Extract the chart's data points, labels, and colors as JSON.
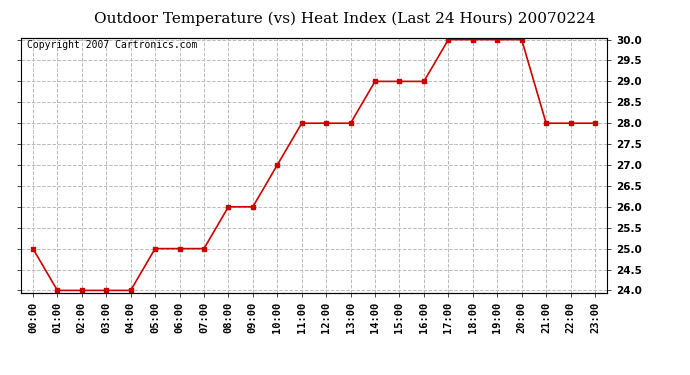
{
  "title": "Outdoor Temperature (vs) Heat Index (Last 24 Hours) 20070224",
  "copyright_text": "Copyright 2007 Cartronics.com",
  "x_labels": [
    "00:00",
    "01:00",
    "02:00",
    "03:00",
    "04:00",
    "05:00",
    "06:00",
    "07:00",
    "08:00",
    "09:00",
    "10:00",
    "11:00",
    "12:00",
    "13:00",
    "14:00",
    "15:00",
    "16:00",
    "17:00",
    "18:00",
    "19:00",
    "20:00",
    "21:00",
    "22:00",
    "23:00"
  ],
  "y_values": [
    25.0,
    24.0,
    24.0,
    24.0,
    24.0,
    25.0,
    25.0,
    25.0,
    26.0,
    26.0,
    27.0,
    28.0,
    28.0,
    28.0,
    29.0,
    29.0,
    29.0,
    30.0,
    30.0,
    30.0,
    30.0,
    28.0,
    28.0,
    28.0
  ],
  "y_min": 24.0,
  "y_max": 30.0,
  "y_step": 0.5,
  "line_color": "#cc0000",
  "marker_style": "s",
  "marker_size": 3,
  "background_color": "#ffffff",
  "plot_bg_color": "#ffffff",
  "grid_color": "#bbbbbb",
  "grid_linestyle": "--",
  "title_fontsize": 11,
  "copyright_fontsize": 7,
  "axis_label_fontsize": 7.5
}
